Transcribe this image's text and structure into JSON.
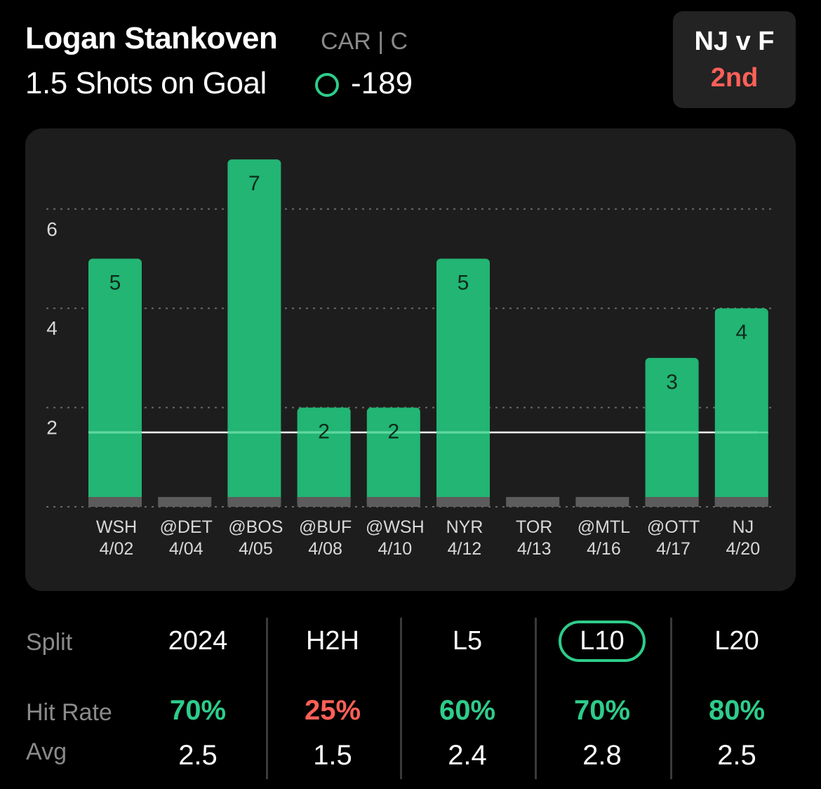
{
  "player": {
    "name": "Logan Stankoven",
    "team_pos": "CAR | C"
  },
  "prop": {
    "line": "1.5 Shots on Goal",
    "odds": "-189"
  },
  "game": {
    "matchup": "NJ v F",
    "period": "2nd"
  },
  "colors": {
    "over": "#22b573",
    "under": "#ff6058",
    "miss_bar": "#5c5c5c",
    "selected": "#2ecc8a"
  },
  "chart_data": {
    "type": "bar",
    "categories": [
      "WSH\n4/02",
      "@DET\n4/04",
      "@BOS\n4/05",
      "@BUF\n4/08",
      "@WSH\n4/10",
      "NYR\n4/12",
      "TOR\n4/13",
      "@MTL\n4/16",
      "@OTT\n4/17",
      "NJ\n4/20"
    ],
    "opponents": [
      "WSH",
      "@DET",
      "@BOS",
      "@BUF",
      "@WSH",
      "NYR",
      "TOR",
      "@MTL",
      "@OTT",
      "NJ"
    ],
    "dates": [
      "4/02",
      "4/04",
      "4/05",
      "4/08",
      "4/10",
      "4/12",
      "4/13",
      "4/16",
      "4/17",
      "4/20"
    ],
    "values": [
      5,
      0,
      7,
      2,
      2,
      5,
      0,
      0,
      3,
      4
    ],
    "line": 1.5,
    "ylim": [
      0,
      7
    ],
    "yticks": [
      2,
      4,
      6
    ],
    "grid": true
  },
  "stats": {
    "row_labels": {
      "split": "Split",
      "hit_rate": "Hit Rate",
      "avg": "Avg"
    },
    "columns": [
      {
        "split": "2024",
        "hit_rate": "70%",
        "avg": "2.5",
        "status": "over",
        "selected": false
      },
      {
        "split": "H2H",
        "hit_rate": "25%",
        "avg": "1.5",
        "status": "under",
        "selected": false
      },
      {
        "split": "L5",
        "hit_rate": "60%",
        "avg": "2.4",
        "status": "over",
        "selected": false
      },
      {
        "split": "L10",
        "hit_rate": "70%",
        "avg": "2.8",
        "status": "over",
        "selected": true
      },
      {
        "split": "L20",
        "hit_rate": "80%",
        "avg": "2.5",
        "status": "over",
        "selected": false
      }
    ]
  }
}
